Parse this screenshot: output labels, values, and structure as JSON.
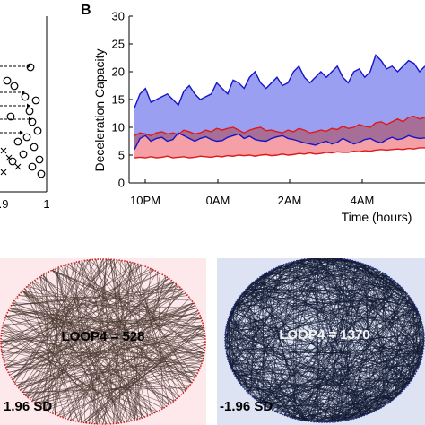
{
  "panel_b": {
    "label": "B",
    "ylabel": "Deceleration Capacity",
    "xlabel": "Time (hours)",
    "y_ticks": [
      "0",
      "5",
      "10",
      "15",
      "20",
      "25",
      "30"
    ],
    "x_ticks": [
      "10PM",
      "0AM",
      "2AM",
      "4AM"
    ]
  },
  "panel_a": {
    "x_ticks": [
      ".9",
      "1"
    ]
  },
  "network_left": {
    "loop_label": "LOOP4 = 528",
    "sd_label": "1.96 SD",
    "bg_color": "#fde8ec",
    "edge_color": "#4a3a30",
    "node_color": "#cc2222"
  },
  "network_right": {
    "loop_label": "LOOP4 = 1370",
    "sd_label": "-1.96 SD",
    "bg_color": "#dde3f3",
    "edge_color": "#111a33",
    "node_color": "#22338a"
  },
  "colors": {
    "blue_line": "#1515c8",
    "blue_fill": "#8a8ef0",
    "red_line": "#e01818",
    "red_fill": "#f4a0a6",
    "mid_fill": "#a86a8e",
    "mid_line": "#7a1a4a"
  },
  "chart_data": {
    "type": "area",
    "title": "",
    "xlabel": "Time (hours)",
    "ylabel": "Deceleration Capacity",
    "ylim": [
      0,
      30
    ],
    "x_tick_labels": [
      "10PM",
      "0AM",
      "2AM",
      "4AM"
    ],
    "series": [
      {
        "name": "",
        "color": "blue",
        "values": [
          13.5,
          16,
          17,
          14.5,
          15,
          15.5,
          16,
          15,
          14,
          16.5,
          17.5,
          16,
          15,
          15.5,
          16,
          18,
          17,
          16,
          18.5,
          18,
          17,
          19,
          20,
          18,
          17,
          18,
          19,
          17.5,
          18,
          20,
          21,
          19,
          18,
          19,
          20,
          19,
          20,
          21,
          19,
          18,
          20,
          20.5,
          19,
          20,
          23,
          22,
          20.5,
          21,
          20,
          21,
          22,
          21.5,
          20,
          21
        ]
      },
      {
        "name": "",
        "color": "blue",
        "values": [
          6,
          8,
          8.5,
          7.5,
          8,
          8.2,
          7.5,
          7.8,
          9,
          8.5,
          8,
          7.5,
          8,
          8.3,
          7.8,
          7.5,
          7.6,
          8.2,
          8.5,
          8.8,
          8,
          8.4,
          7.8,
          7.6,
          7.5,
          8,
          8.3,
          8.5,
          8,
          7.8,
          7.5,
          7.2,
          7,
          6.8,
          7.2,
          7.5,
          7,
          7.3,
          8,
          7.5,
          7,
          7.3,
          7.8,
          8,
          7.5,
          7.2,
          7.8,
          8.2,
          7.8,
          8,
          8.5,
          8.2,
          8,
          8.1
        ]
      },
      {
        "name": "",
        "color": "red",
        "values": [
          8.5,
          9,
          8.8,
          8.5,
          9,
          9.2,
          8.8,
          9,
          8.7,
          9.5,
          9.2,
          8.8,
          9,
          9.5,
          9.2,
          9.8,
          9.5,
          9.8,
          10,
          9.5,
          9,
          9.5,
          9.8,
          10,
          9.4,
          9.5,
          9.2,
          9,
          9.5,
          9.2,
          9.8,
          9.5,
          9,
          9.2,
          9.5,
          9.3,
          9.8,
          9.6,
          10.2,
          9.8,
          10,
          10.5,
          10.2,
          10,
          10.8,
          11,
          10.5,
          11,
          11.5,
          11,
          11.8,
          12,
          11.5,
          11.8
        ]
      },
      {
        "name": "",
        "color": "red",
        "values": [
          4.5,
          4.6,
          4.5,
          4.7,
          4.5,
          4.6,
          4.8,
          4.5,
          4.6,
          4.7,
          4.5,
          4.6,
          4.8,
          4.7,
          4.6,
          4.8,
          4.7,
          4.9,
          4.8,
          5,
          4.9,
          5,
          4.8,
          5,
          5.1,
          4.9,
          5,
          5.2,
          5,
          5.1,
          5.3,
          5.2,
          5.4,
          5.2,
          5.3,
          5.5,
          5.4,
          5.6,
          5.5,
          5.5,
          5.7,
          5.6,
          5.8,
          5.7,
          5.9,
          6,
          5.9,
          6,
          6.1,
          6,
          6.2,
          6.1,
          6.3,
          6.3
        ]
      }
    ]
  }
}
